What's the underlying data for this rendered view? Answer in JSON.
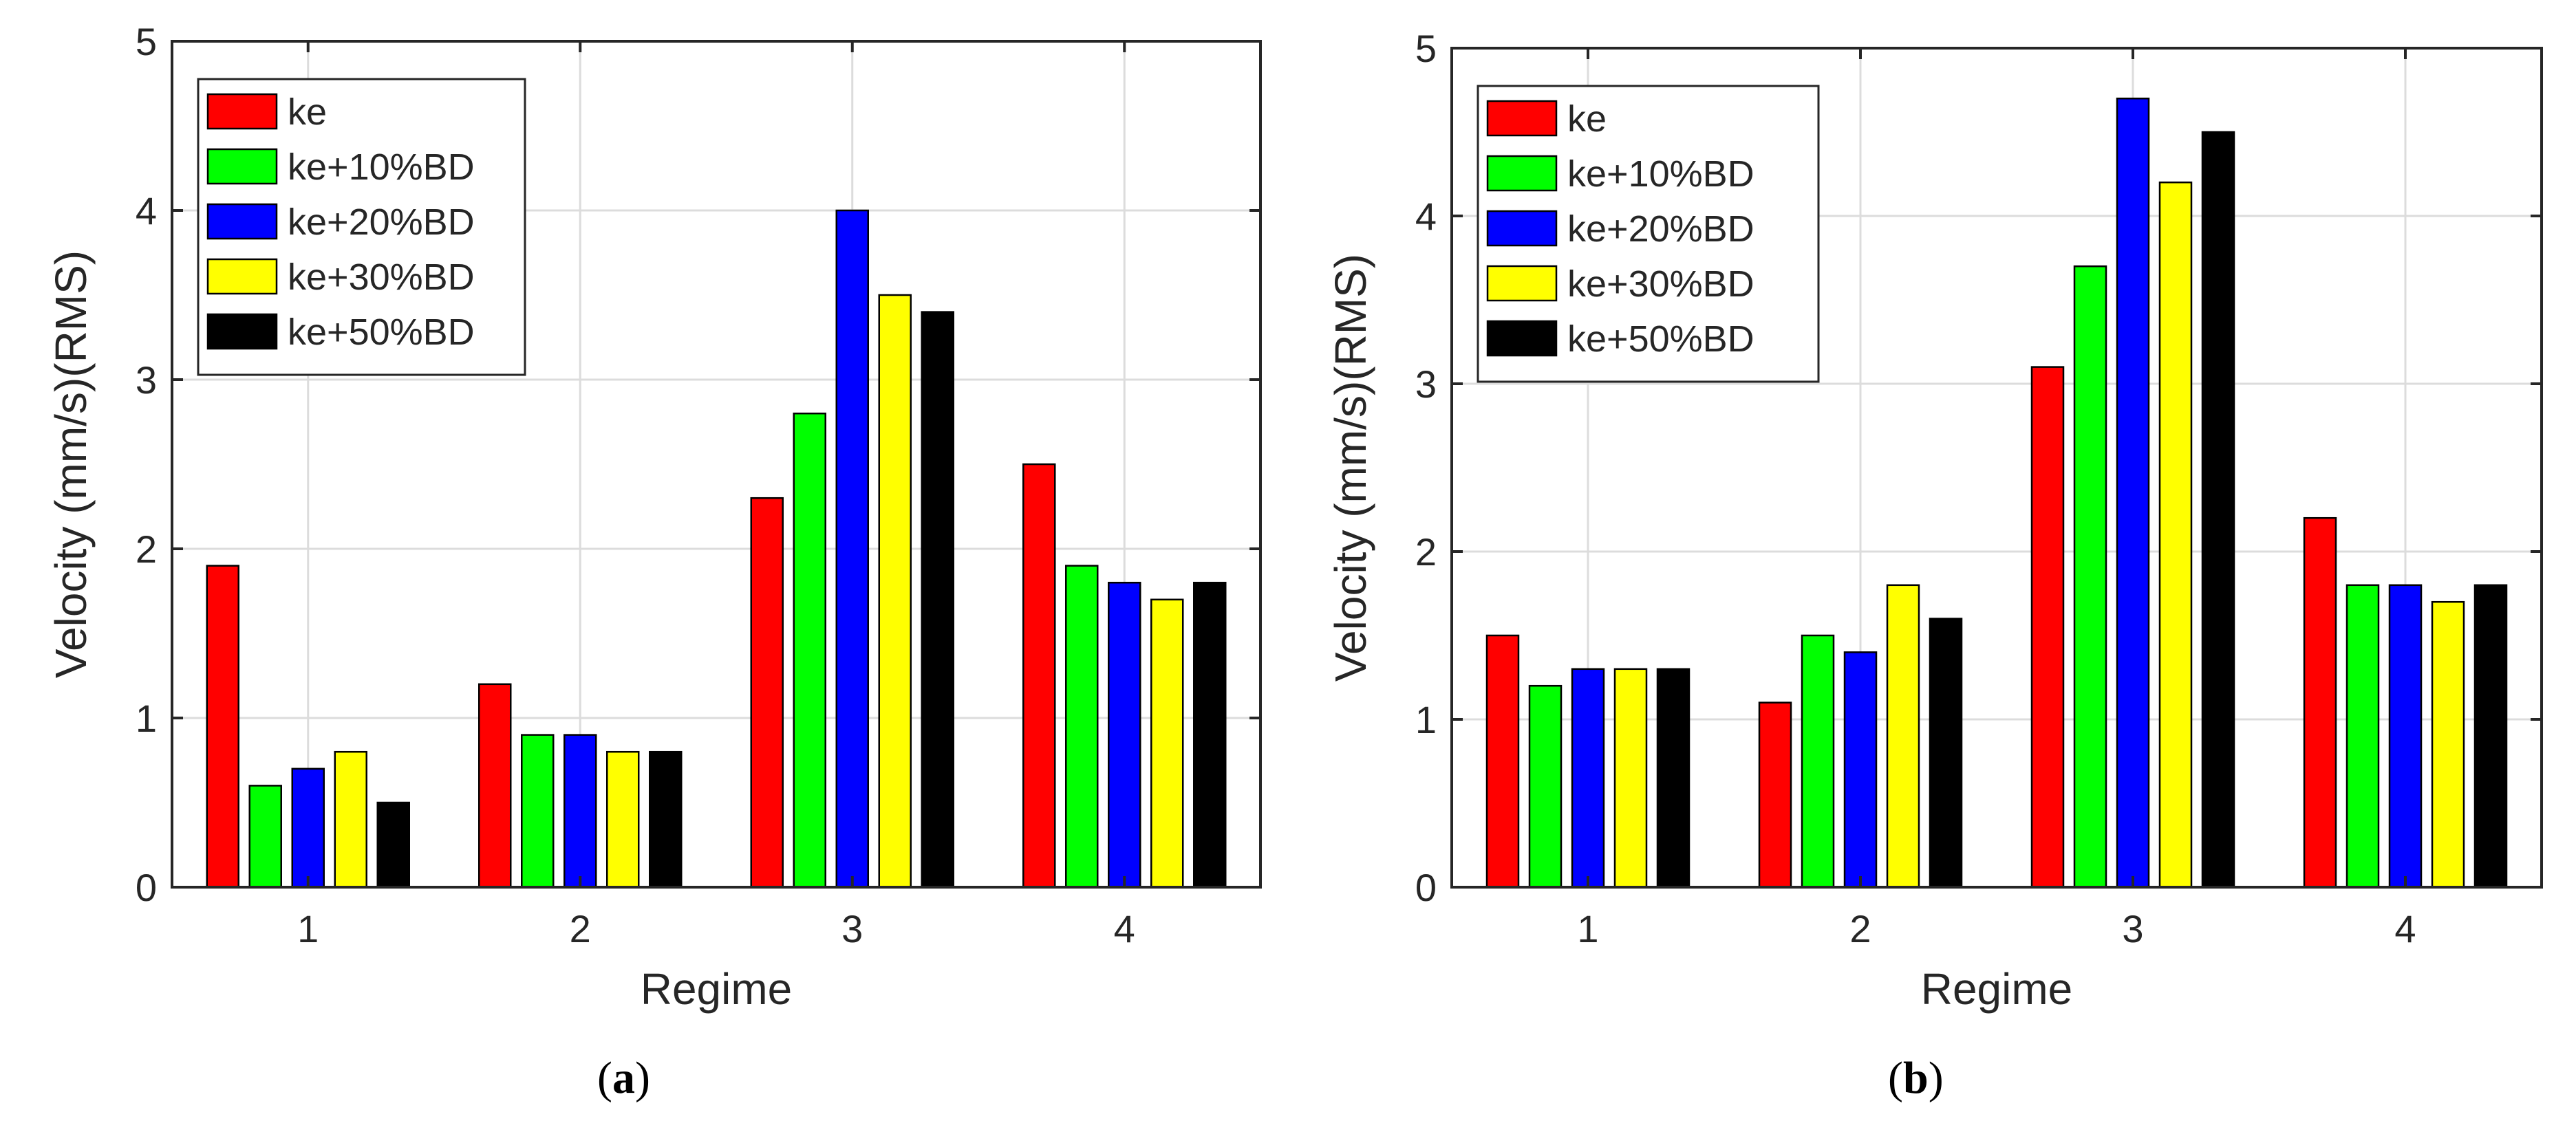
{
  "chart_data": [
    {
      "type": "bar",
      "panel_label_open": "(",
      "panel_label": "a",
      "panel_label_close": ")",
      "xlabel": "Regime",
      "ylabel": "Velocity (mm/s)(RMS)",
      "categories": [
        "1",
        "2",
        "3",
        "4"
      ],
      "ylim": [
        0,
        5
      ],
      "yticks": [
        0,
        1,
        2,
        3,
        4,
        5
      ],
      "grid": true,
      "legend_position": "top-left",
      "series": [
        {
          "name": "ke",
          "color": "#ff0000",
          "values": [
            1.9,
            1.2,
            2.3,
            2.5
          ]
        },
        {
          "name": "ke+10%BD",
          "color": "#00ff00",
          "values": [
            0.6,
            0.9,
            2.8,
            1.9
          ]
        },
        {
          "name": "ke+20%BD",
          "color": "#0000ff",
          "values": [
            0.7,
            0.9,
            4.0,
            1.8
          ]
        },
        {
          "name": "ke+30%BD",
          "color": "#ffff00",
          "values": [
            0.8,
            0.8,
            3.5,
            1.7
          ]
        },
        {
          "name": "ke+50%BD",
          "color": "#000000",
          "values": [
            0.5,
            0.8,
            3.4,
            1.8
          ]
        }
      ]
    },
    {
      "type": "bar",
      "panel_label_open": "(",
      "panel_label": "b",
      "panel_label_close": ")",
      "xlabel": "Regime",
      "ylabel": "Velocity (mm/s)(RMS)",
      "categories": [
        "1",
        "2",
        "3",
        "4"
      ],
      "ylim": [
        0,
        5
      ],
      "yticks": [
        0,
        1,
        2,
        3,
        4,
        5
      ],
      "grid": true,
      "legend_position": "top-left",
      "series": [
        {
          "name": "ke",
          "color": "#ff0000",
          "values": [
            1.5,
            1.1,
            3.1,
            2.2
          ]
        },
        {
          "name": "ke+10%BD",
          "color": "#00ff00",
          "values": [
            1.2,
            1.5,
            3.7,
            1.8
          ]
        },
        {
          "name": "ke+20%BD",
          "color": "#0000ff",
          "values": [
            1.3,
            1.4,
            4.7,
            1.8
          ]
        },
        {
          "name": "ke+30%BD",
          "color": "#ffff00",
          "values": [
            1.3,
            1.8,
            4.2,
            1.7
          ]
        },
        {
          "name": "ke+50%BD",
          "color": "#000000",
          "values": [
            1.3,
            1.6,
            4.5,
            1.8
          ]
        }
      ]
    }
  ]
}
